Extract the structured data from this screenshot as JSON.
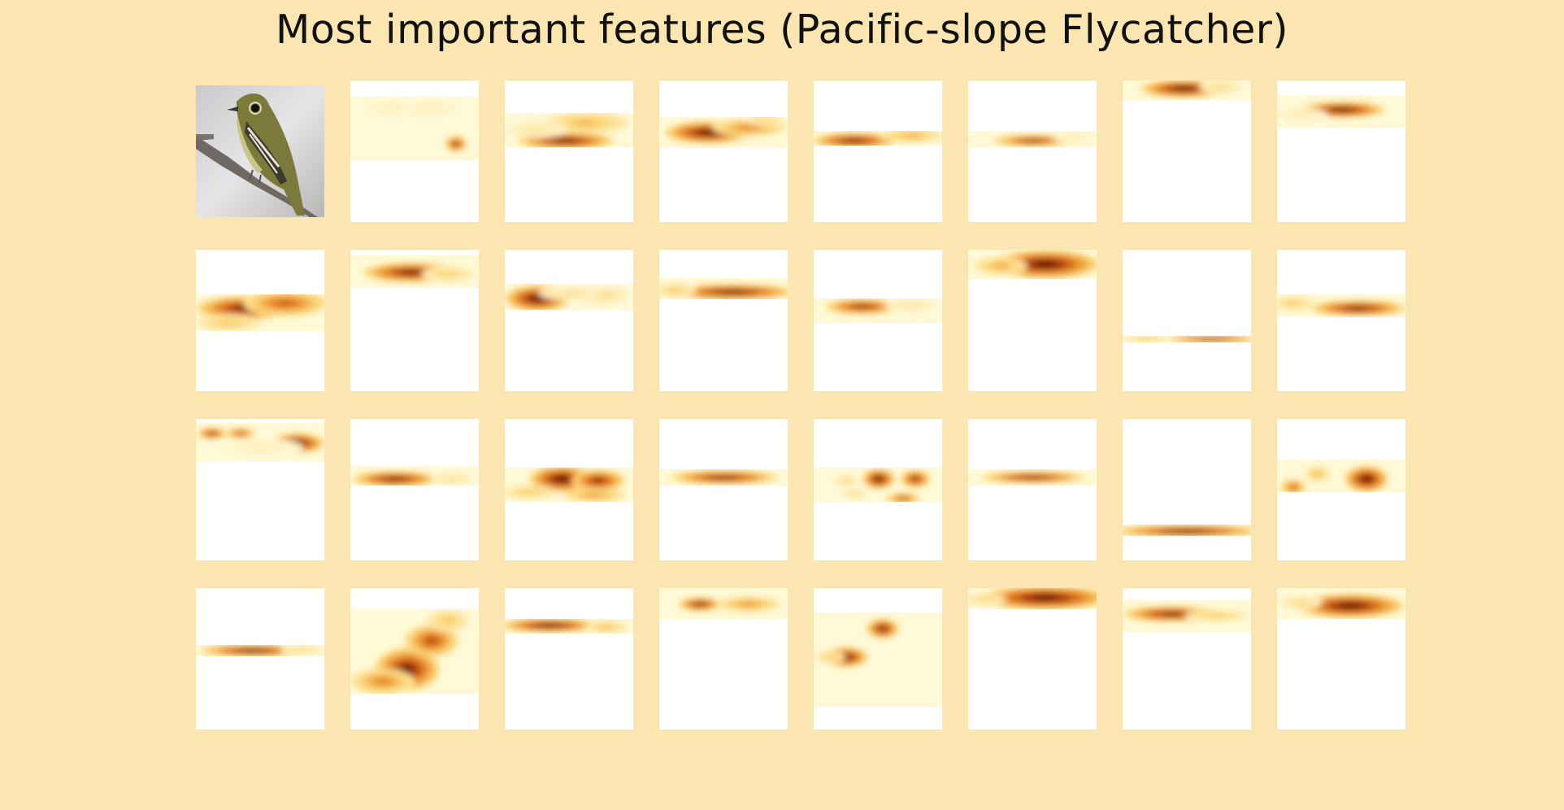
{
  "figure": {
    "title": "Most important features (Pacific-slope Flycatcher)"
  },
  "colors": {
    "background": "#fbe6b2",
    "tile": "#ffffff",
    "heat_low": "#fff7c8",
    "heat_mid": "#f2a23a",
    "heat_high": "#3a0c02"
  },
  "icons": {
    "input_image": "bird-photo"
  }
}
